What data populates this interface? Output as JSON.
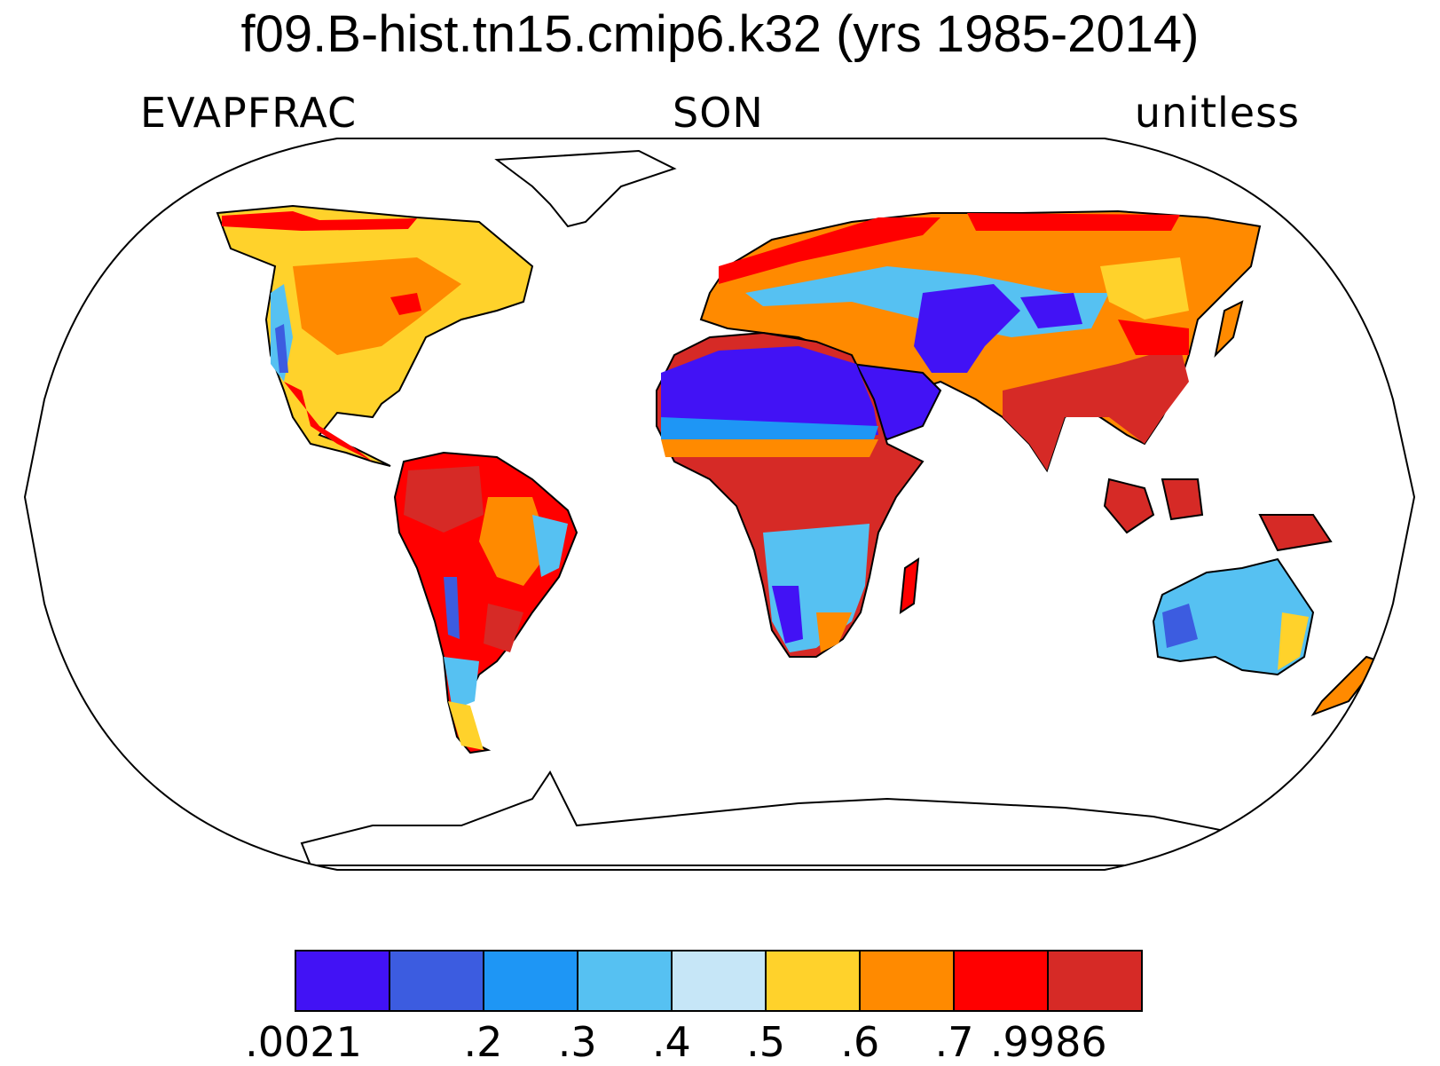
{
  "header": {
    "title": "f09.B-hist.tn15.cmip6.k32 (yrs 1985-2014)",
    "left_label": "EVAPFRAC",
    "center_label": "SON",
    "right_label": "unitless"
  },
  "colorbar": {
    "colors": [
      "#4212f5",
      "#3c5ce0",
      "#1e96f5",
      "#56c1f2",
      "#c6e6f7",
      "#ffd22b",
      "#ff8a00",
      "#ff0000",
      "#d62a26"
    ],
    "labels": [
      ".0021",
      ".2",
      ".3",
      ".4",
      ".5",
      ".6",
      ".7",
      ".9986"
    ]
  },
  "chart_data": {
    "type": "heatmap",
    "title": "f09.B-hist.tn15.cmip6.k32 (yrs 1985-2014)",
    "variable": "EVAPFRAC",
    "season": "SON",
    "units": "unitless",
    "projection": "Robinson",
    "levels": [
      0.0021,
      0.2,
      0.3,
      0.4,
      0.5,
      0.6,
      0.7,
      0.9986
    ]
  }
}
